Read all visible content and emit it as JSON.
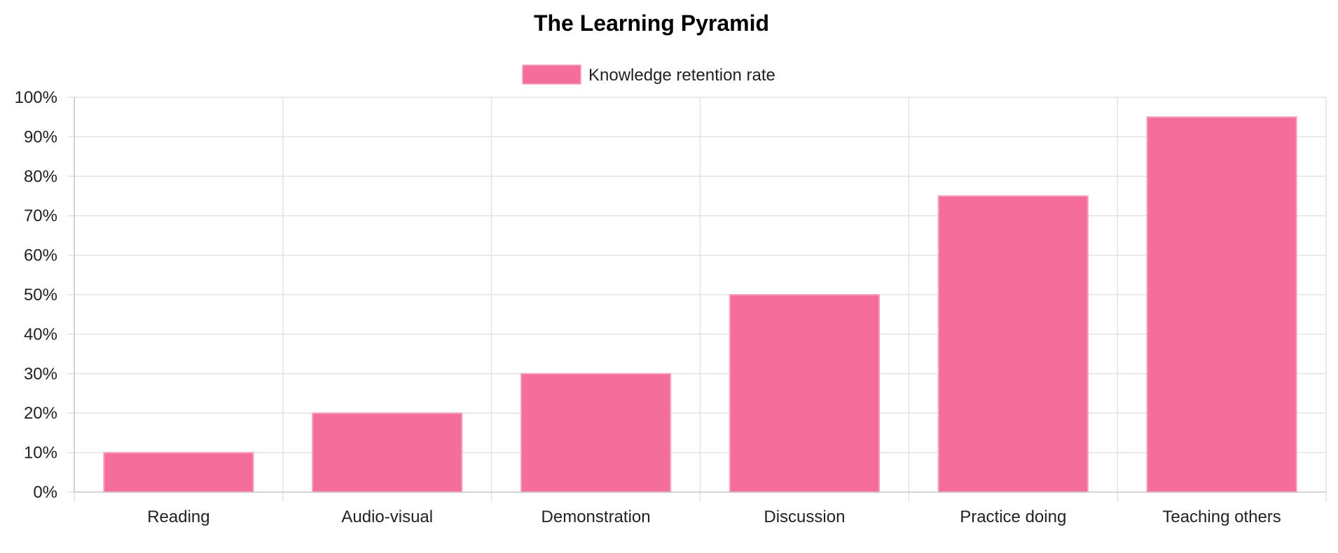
{
  "chart_data": {
    "type": "bar",
    "title": "The Learning Pyramid",
    "xlabel": "",
    "ylabel": "",
    "categories": [
      "Reading",
      "Audio-visual",
      "Demonstration",
      "Discussion",
      "Practice doing",
      "Teaching others"
    ],
    "series": [
      {
        "name": "Knowledge retention rate",
        "values": [
          10,
          20,
          30,
          50,
          75,
          95
        ],
        "color": "#f46d9b",
        "border_color": "#f5a3c0"
      }
    ],
    "ylim": [
      0,
      100
    ],
    "y_ticks": [
      "0%",
      "10%",
      "20%",
      "30%",
      "40%",
      "50%",
      "60%",
      "70%",
      "80%",
      "90%",
      "100%"
    ],
    "grid": true,
    "legend_position": "top-center"
  }
}
